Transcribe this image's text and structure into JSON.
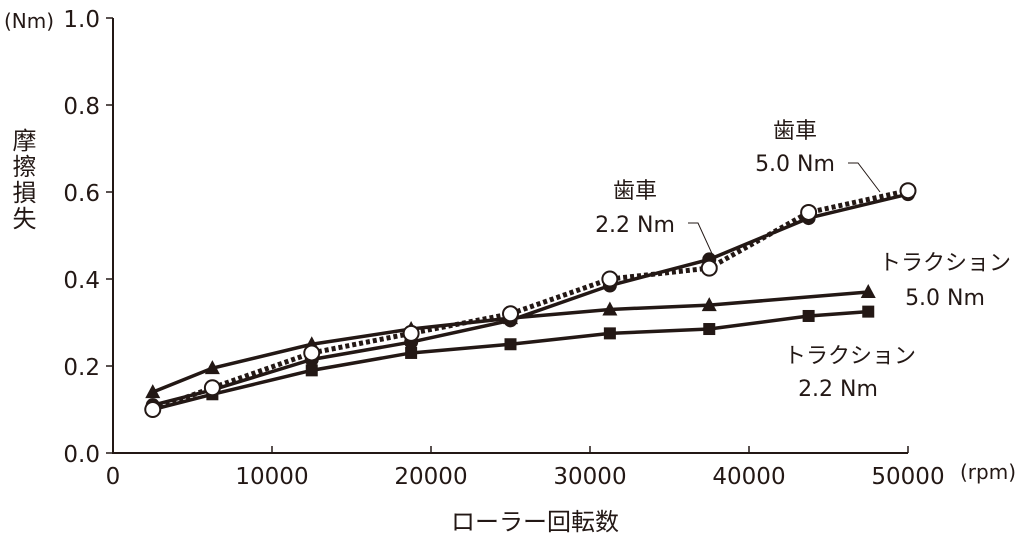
{
  "chart_data": {
    "type": "line",
    "title": "",
    "xlabel": "ローラー回転数",
    "xunit": "(rpm)",
    "ylabel": "摩擦損失",
    "yunit": "(Nm)",
    "xlim": [
      0,
      50000
    ],
    "ylim": [
      0.0,
      1.0
    ],
    "xticks": [
      "0",
      "10000",
      "20000",
      "30000",
      "40000",
      "50000"
    ],
    "yticks": [
      "0.0",
      "0.2",
      "0.4",
      "0.6",
      "0.8",
      "1.0"
    ],
    "grid": false,
    "color": "#231815",
    "series": [
      {
        "name": "トラクション 2.2 Nm",
        "label_lines": [
          "トラクション",
          "2.2 Nm"
        ],
        "marker": "square",
        "line": "solid",
        "x": [
          2500,
          6250,
          12500,
          18750,
          25000,
          31250,
          37500,
          43750,
          47500
        ],
        "y": [
          0.1,
          0.135,
          0.19,
          0.23,
          0.25,
          0.275,
          0.285,
          0.315,
          0.325
        ]
      },
      {
        "name": "トラクション 5.0 Nm",
        "label_lines": [
          "トラクション",
          "5.0 Nm"
        ],
        "marker": "triangle",
        "line": "solid",
        "x": [
          2500,
          6250,
          12500,
          18750,
          25000,
          31250,
          37500,
          47500
        ],
        "y": [
          0.14,
          0.195,
          0.25,
          0.285,
          0.31,
          0.33,
          0.34,
          0.37
        ]
      },
      {
        "name": "歯車 2.2 Nm",
        "label_lines": [
          "歯車",
          "2.2 Nm"
        ],
        "marker": "filled-circle",
        "line": "solid",
        "x": [
          2500,
          6250,
          12500,
          18750,
          25000,
          31250,
          37500,
          43750,
          50000
        ],
        "y": [
          0.11,
          0.145,
          0.215,
          0.255,
          0.305,
          0.385,
          0.445,
          0.54,
          0.595
        ]
      },
      {
        "name": "歯車 5.0 Nm",
        "label_lines": [
          "歯車",
          "5.0 Nm"
        ],
        "marker": "open-circle",
        "line": "dotted",
        "x": [
          2500,
          6250,
          12500,
          18750,
          25000,
          31250,
          37500,
          43750,
          50000
        ],
        "y": [
          0.1,
          0.15,
          0.23,
          0.275,
          0.32,
          0.4,
          0.425,
          0.553,
          0.603
        ]
      }
    ]
  }
}
